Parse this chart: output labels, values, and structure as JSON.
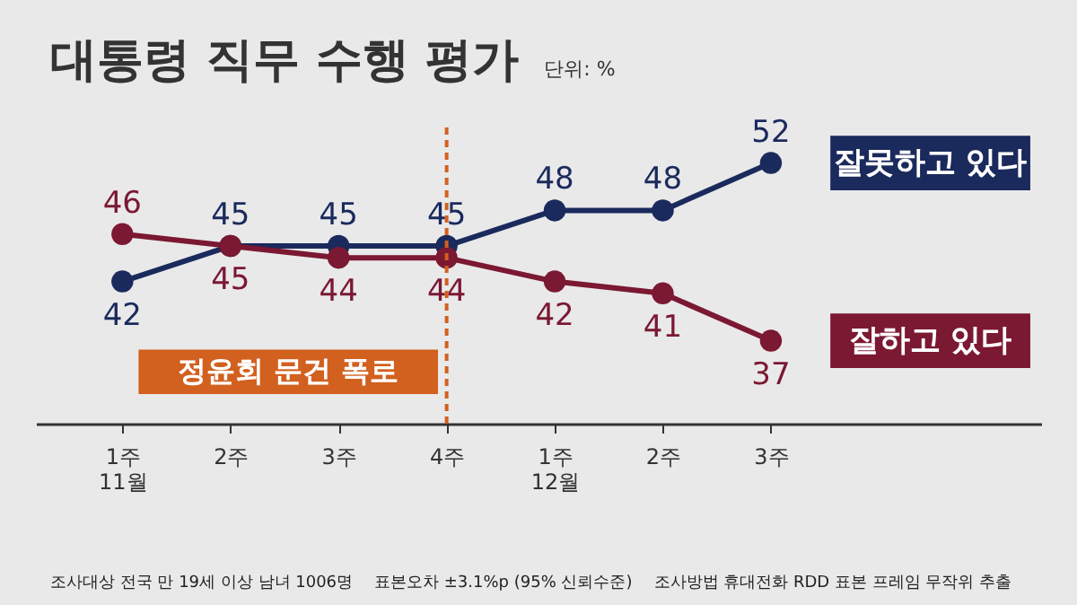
{
  "chart_data": {
    "type": "line",
    "title": "대통령 직무 수행 평가",
    "subtitle": "단위: %",
    "categories": [
      "1주\n11월",
      "2주",
      "3주",
      "4주",
      "1주\n12월",
      "2주",
      "3주"
    ],
    "series": [
      {
        "name": "잘못하고 있다",
        "color": "#1b2a5c",
        "values": [
          42,
          45,
          45,
          45,
          48,
          48,
          52
        ]
      },
      {
        "name": "잘하고 있다",
        "color": "#7b1832",
        "values": [
          46,
          45,
          44,
          44,
          42,
          41,
          37
        ]
      }
    ],
    "data_labels": true,
    "marker": "circle",
    "legend": false,
    "grid": false,
    "ref_lines": [
      {
        "axis": "x",
        "value": "4주",
        "label": "정윤회 문건 폭로",
        "color": "#d2601e",
        "line_style": "dashed"
      }
    ],
    "annotations": [
      "조사대상 전국 만 19세 이상 남녀 1006명",
      "표본오차 ±3.1%p (95% 신뢰수준)",
      "조사방법 휴대전화 RDD 표본 프레임 무작위 추출"
    ]
  }
}
